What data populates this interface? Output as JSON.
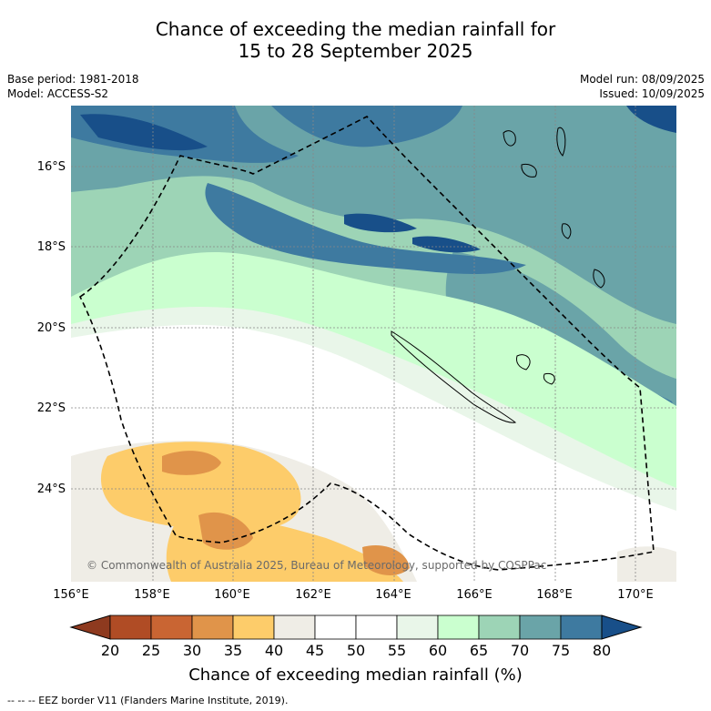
{
  "title": {
    "line1": "Chance of exceeding the median rainfall for",
    "line2": "15 to 28 September 2025"
  },
  "info_left": {
    "base_period": "Base period: 1981-2018",
    "model": "Model: ACCESS-S2"
  },
  "info_right": {
    "model_run": "Model run: 08/09/2025",
    "issued": "Issued: 10/09/2025"
  },
  "lat_labels": [
    "16°S",
    "18°S",
    "20°S",
    "22°S",
    "24°S"
  ],
  "lon_labels": [
    "156°E",
    "158°E",
    "160°E",
    "162°E",
    "164°E",
    "166°E",
    "168°E",
    "170°E"
  ],
  "copyright": "© Commonwealth of Australia 2025, Bureau of Meteorology, supported by COSPPac",
  "colorbar": {
    "ticks": [
      "20",
      "25",
      "30",
      "35",
      "40",
      "45",
      "50",
      "55",
      "60",
      "65",
      "70",
      "75",
      "80"
    ],
    "colors": [
      "#8e3a1f",
      "#b04c25",
      "#c96533",
      "#e0944a",
      "#fdcc6a",
      "#efede6",
      "#ffffff",
      "#ffffff",
      "#e9f6e9",
      "#caffcf",
      "#9dd4b6",
      "#6aa4a8",
      "#3e7aa0",
      "#184f89"
    ],
    "title": "Chance of exceeding median rainfall (%)"
  },
  "footer": "--  --  -- EEZ border V11 (Flanders Marine Institute, 2019)."
}
